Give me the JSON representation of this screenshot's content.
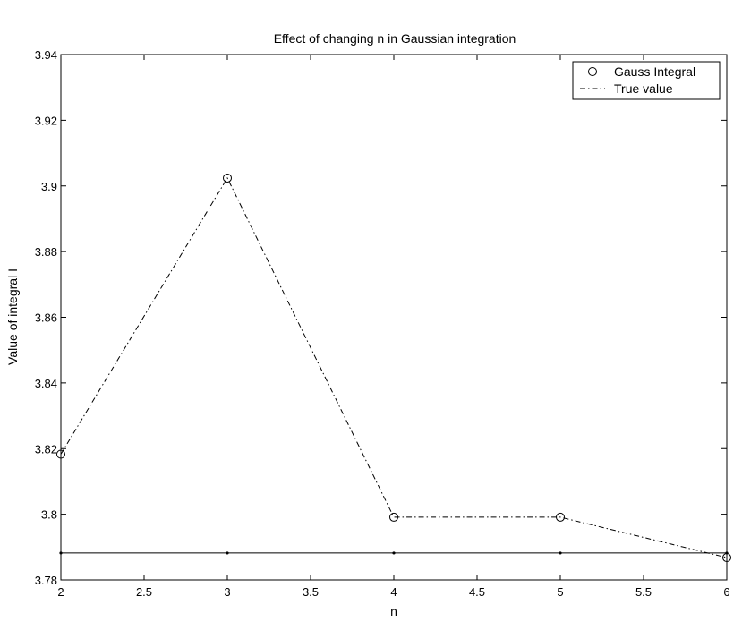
{
  "chart_data": {
    "type": "line",
    "title": "Effect of changing n in Gaussian integration",
    "xlabel": "n",
    "ylabel": "Value of integral I",
    "xlim": [
      2,
      6
    ],
    "ylim": [
      3.78,
      3.94
    ],
    "xticks": [
      "2",
      "2.5",
      "3",
      "3.5",
      "4",
      "4.5",
      "5",
      "5.5",
      "6"
    ],
    "yticks": [
      "3.78",
      "3.8",
      "3.82",
      "3.84",
      "3.86",
      "3.88",
      "3.9",
      "3.92",
      "3.94"
    ],
    "grid": false,
    "legend_position": "top-right",
    "series": [
      {
        "name": "Gauss Integral",
        "style": "dash-dot line with circle markers",
        "x": [
          2,
          3,
          4,
          5,
          6
        ],
        "y": [
          3.8183,
          3.9024,
          3.7991,
          3.7991,
          3.7868
        ]
      },
      {
        "name": "True value",
        "style": "solid line with dot markers",
        "x": [
          2,
          3,
          4,
          5,
          6
        ],
        "y": [
          3.7882,
          3.7882,
          3.7882,
          3.7882,
          3.7882
        ]
      }
    ],
    "colors": {
      "line": "#000000",
      "background": "#ffffff"
    }
  }
}
